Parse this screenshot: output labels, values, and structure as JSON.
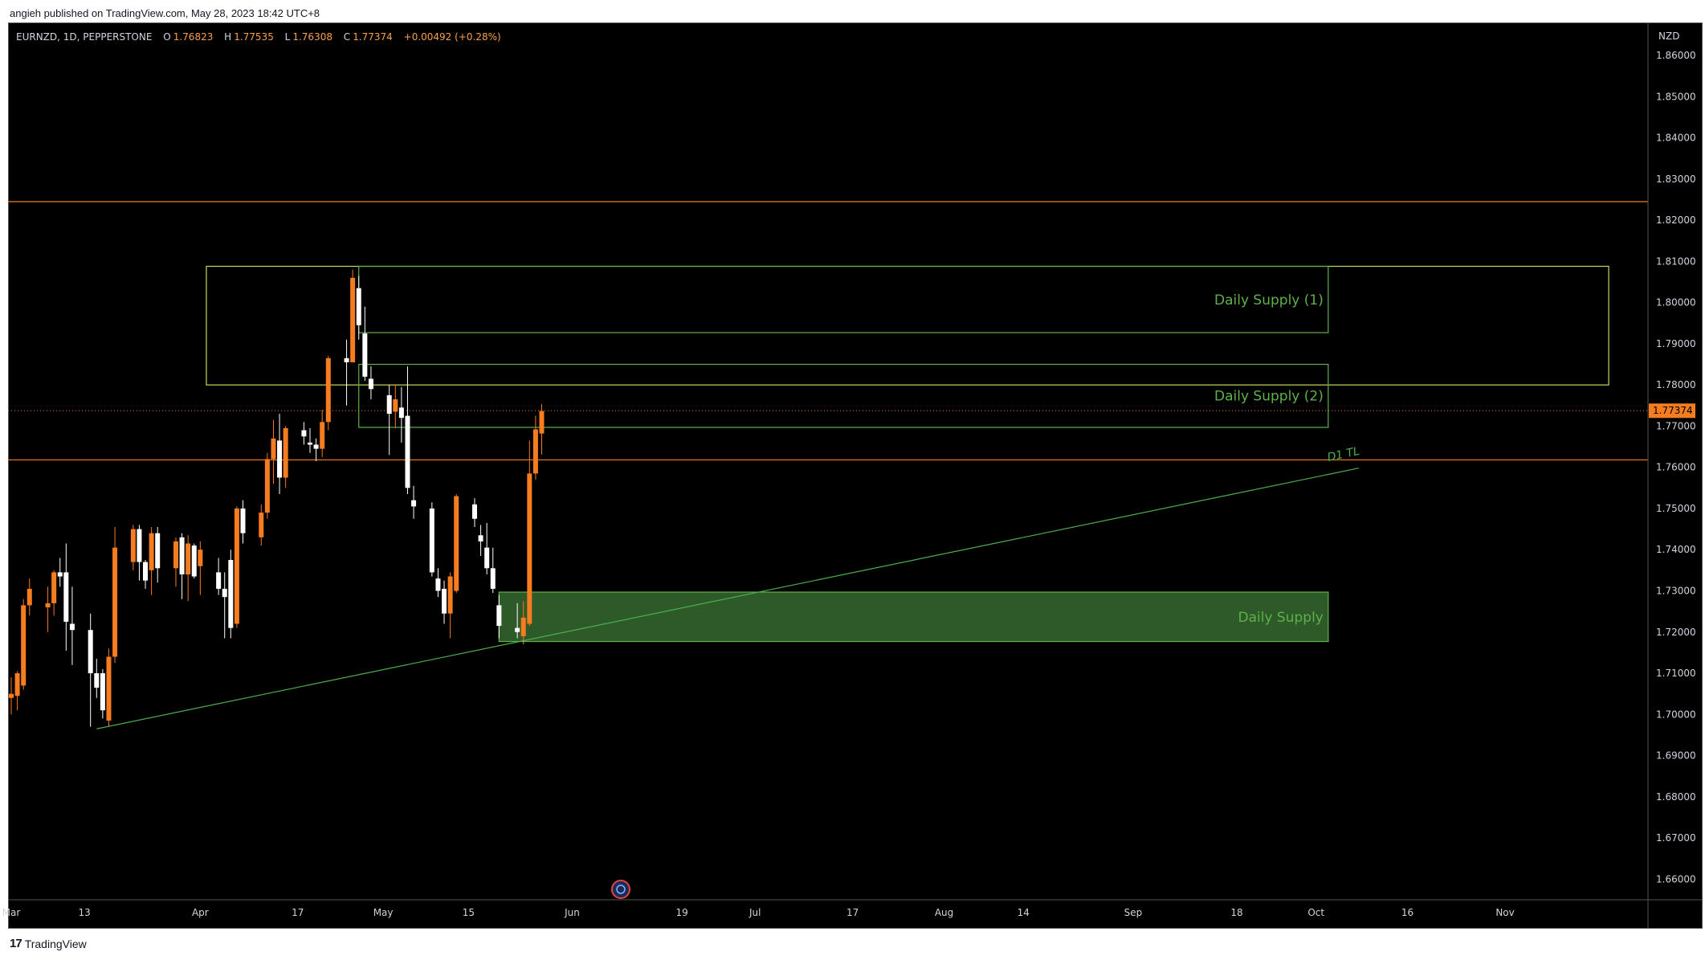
{
  "header": {
    "published": "angieh published on TradingView.com, May 28, 2023 18:42 UTC+8"
  },
  "legend": {
    "symbol": "EURNZD, 1D, PEPPERSTONE",
    "o_label": "O",
    "o_value": "1.76823",
    "h_label": "H",
    "h_value": "1.77535",
    "l_label": "L",
    "l_value": "1.76308",
    "c_label": "C",
    "c_value": "1.77374",
    "change": "+0.00492 (+0.28%)"
  },
  "footer": {
    "logo_text": "TradingView"
  },
  "colors": {
    "background": "#000000",
    "up": "#f57c1f",
    "down": "#ffffff",
    "zone_border": "#5fb04a",
    "zone_fill": "#2d5a28",
    "zone_label": "#5fb04a",
    "resistance_line": "#f57c1f",
    "trendline": "#4caf50",
    "last_price_bg": "#f57c1f",
    "axis_text": "#d1d4dc"
  },
  "chart_data": {
    "type": "candlestick",
    "symbol": "EURNZD",
    "timeframe": "1D",
    "currency": "NZD",
    "ylim": [
      1.655,
      1.868
    ],
    "y_ticks": [
      "1.86000",
      "1.85000",
      "1.84000",
      "1.83000",
      "1.82000",
      "1.81000",
      "1.80000",
      "1.79000",
      "1.78000",
      "1.77000",
      "1.76000",
      "1.75000",
      "1.74000",
      "1.73000",
      "1.72000",
      "1.71000",
      "1.70000",
      "1.69000",
      "1.68000",
      "1.67000",
      "1.66000"
    ],
    "x_ticks": [
      {
        "label": "Mar",
        "day": 0
      },
      {
        "label": "13",
        "day": 12
      },
      {
        "label": "Apr",
        "day": 31
      },
      {
        "label": "17",
        "day": 47
      },
      {
        "label": "May",
        "day": 61
      },
      {
        "label": "15",
        "day": 75
      },
      {
        "label": "Jun",
        "day": 92
      },
      {
        "label": "19",
        "day": 110
      },
      {
        "label": "Jul",
        "day": 122
      },
      {
        "label": "17",
        "day": 138
      },
      {
        "label": "Aug",
        "day": 153
      },
      {
        "label": "14",
        "day": 166
      },
      {
        "label": "Sep",
        "day": 184
      },
      {
        "label": "18",
        "day": 201
      },
      {
        "label": "Oct",
        "day": 214
      },
      {
        "label": "16",
        "day": 229
      },
      {
        "label": "Nov",
        "day": 245
      }
    ],
    "last_price": "1.77374",
    "last_price_value": 1.77374,
    "candles": [
      {
        "day": -2,
        "o": 1.7135,
        "h": 1.73,
        "l": 1.705,
        "c": 1.7075
      },
      {
        "day": -1,
        "o": 1.7075,
        "h": 1.7135,
        "l": 1.7015,
        "c": 1.7035
      },
      {
        "day": 0,
        "o": 1.704,
        "h": 1.709,
        "l": 1.7,
        "c": 1.705
      },
      {
        "day": 1,
        "o": 1.7045,
        "h": 1.7105,
        "l": 1.701,
        "c": 1.71
      },
      {
        "day": 2,
        "o": 1.707,
        "h": 1.728,
        "l": 1.706,
        "c": 1.7265
      },
      {
        "day": 3,
        "o": 1.7265,
        "h": 1.733,
        "l": 1.724,
        "c": 1.7305
      },
      {
        "day": 6,
        "o": 1.726,
        "h": 1.731,
        "l": 1.72,
        "c": 1.727
      },
      {
        "day": 7,
        "o": 1.727,
        "h": 1.735,
        "l": 1.724,
        "c": 1.7345
      },
      {
        "day": 8,
        "o": 1.7345,
        "h": 1.738,
        "l": 1.731,
        "c": 1.7335
      },
      {
        "day": 9,
        "o": 1.7345,
        "h": 1.7415,
        "l": 1.7155,
        "c": 1.7225
      },
      {
        "day": 10,
        "o": 1.722,
        "h": 1.731,
        "l": 1.712,
        "c": 1.7205
      },
      {
        "day": 13,
        "o": 1.7205,
        "h": 1.7245,
        "l": 1.697,
        "c": 1.71
      },
      {
        "day": 14,
        "o": 1.71,
        "h": 1.7135,
        "l": 1.704,
        "c": 1.7065
      },
      {
        "day": 15,
        "o": 1.71,
        "h": 1.711,
        "l": 1.699,
        "c": 1.701
      },
      {
        "day": 16,
        "o": 1.6985,
        "h": 1.716,
        "l": 1.697,
        "c": 1.714
      },
      {
        "day": 17,
        "o": 1.714,
        "h": 1.7455,
        "l": 1.7125,
        "c": 1.7405
      },
      {
        "day": 20,
        "o": 1.737,
        "h": 1.746,
        "l": 1.735,
        "c": 1.745
      },
      {
        "day": 21,
        "o": 1.745,
        "h": 1.746,
        "l": 1.7325,
        "c": 1.737
      },
      {
        "day": 22,
        "o": 1.737,
        "h": 1.7375,
        "l": 1.7305,
        "c": 1.7325
      },
      {
        "day": 23,
        "o": 1.735,
        "h": 1.7455,
        "l": 1.729,
        "c": 1.744
      },
      {
        "day": 24,
        "o": 1.744,
        "h": 1.7455,
        "l": 1.732,
        "c": 1.7355
      },
      {
        "day": 27,
        "o": 1.7355,
        "h": 1.743,
        "l": 1.731,
        "c": 1.742
      },
      {
        "day": 28,
        "o": 1.743,
        "h": 1.744,
        "l": 1.728,
        "c": 1.734
      },
      {
        "day": 29,
        "o": 1.734,
        "h": 1.7435,
        "l": 1.7275,
        "c": 1.7415
      },
      {
        "day": 30,
        "o": 1.741,
        "h": 1.7415,
        "l": 1.733,
        "c": 1.7335
      },
      {
        "day": 31,
        "o": 1.736,
        "h": 1.742,
        "l": 1.729,
        "c": 1.74
      },
      {
        "day": 34,
        "o": 1.7345,
        "h": 1.738,
        "l": 1.729,
        "c": 1.7305
      },
      {
        "day": 35,
        "o": 1.7305,
        "h": 1.7345,
        "l": 1.7185,
        "c": 1.7285
      },
      {
        "day": 36,
        "o": 1.7375,
        "h": 1.74,
        "l": 1.7185,
        "c": 1.721
      },
      {
        "day": 37,
        "o": 1.722,
        "h": 1.7505,
        "l": 1.721,
        "c": 1.75
      },
      {
        "day": 38,
        "o": 1.75,
        "h": 1.752,
        "l": 1.7415,
        "c": 1.744
      },
      {
        "day": 41,
        "o": 1.743,
        "h": 1.751,
        "l": 1.741,
        "c": 1.749
      },
      {
        "day": 42,
        "o": 1.749,
        "h": 1.7635,
        "l": 1.7475,
        "c": 1.762
      },
      {
        "day": 43,
        "o": 1.762,
        "h": 1.7715,
        "l": 1.756,
        "c": 1.767
      },
      {
        "day": 44,
        "o": 1.7665,
        "h": 1.773,
        "l": 1.7535,
        "c": 1.7575
      },
      {
        "day": 45,
        "o": 1.7575,
        "h": 1.77,
        "l": 1.755,
        "c": 1.7695
      },
      {
        "day": 48,
        "o": 1.769,
        "h": 1.771,
        "l": 1.7655,
        "c": 1.7675
      },
      {
        "day": 49,
        "o": 1.766,
        "h": 1.7695,
        "l": 1.7635,
        "c": 1.7655
      },
      {
        "day": 50,
        "o": 1.7655,
        "h": 1.767,
        "l": 1.7615,
        "c": 1.7645
      },
      {
        "day": 51,
        "o": 1.7645,
        "h": 1.774,
        "l": 1.7625,
        "c": 1.771
      },
      {
        "day": 52,
        "o": 1.771,
        "h": 1.787,
        "l": 1.769,
        "c": 1.7865
      },
      {
        "day": 55,
        "o": 1.7865,
        "h": 1.791,
        "l": 1.775,
        "c": 1.7855
      },
      {
        "day": 56,
        "o": 1.7855,
        "h": 1.808,
        "l": 1.7855,
        "c": 1.806
      },
      {
        "day": 57,
        "o": 1.8035,
        "h": 1.8065,
        "l": 1.791,
        "c": 1.7945
      },
      {
        "day": 58,
        "o": 1.7925,
        "h": 1.799,
        "l": 1.781,
        "c": 1.782
      },
      {
        "day": 59,
        "o": 1.7815,
        "h": 1.7845,
        "l": 1.7765,
        "c": 1.779
      },
      {
        "day": 62,
        "o": 1.7775,
        "h": 1.78,
        "l": 1.763,
        "c": 1.773
      },
      {
        "day": 63,
        "o": 1.7735,
        "h": 1.78,
        "l": 1.7695,
        "c": 1.7765
      },
      {
        "day": 64,
        "o": 1.7745,
        "h": 1.7795,
        "l": 1.766,
        "c": 1.772
      },
      {
        "day": 65,
        "o": 1.7725,
        "h": 1.7845,
        "l": 1.7535,
        "c": 1.755
      },
      {
        "day": 66,
        "o": 1.752,
        "h": 1.7555,
        "l": 1.7475,
        "c": 1.7505
      },
      {
        "day": 69,
        "o": 1.75,
        "h": 1.7515,
        "l": 1.7335,
        "c": 1.7345
      },
      {
        "day": 70,
        "o": 1.733,
        "h": 1.7355,
        "l": 1.7285,
        "c": 1.73
      },
      {
        "day": 71,
        "o": 1.7305,
        "h": 1.7325,
        "l": 1.722,
        "c": 1.7245
      },
      {
        "day": 72,
        "o": 1.7245,
        "h": 1.7345,
        "l": 1.7185,
        "c": 1.7335
      },
      {
        "day": 73,
        "o": 1.73,
        "h": 1.7535,
        "l": 1.7295,
        "c": 1.753
      },
      {
        "day": 76,
        "o": 1.751,
        "h": 1.7525,
        "l": 1.7455,
        "c": 1.7475
      },
      {
        "day": 77,
        "o": 1.7435,
        "h": 1.746,
        "l": 1.7385,
        "c": 1.742
      },
      {
        "day": 78,
        "o": 1.7405,
        "h": 1.7465,
        "l": 1.734,
        "c": 1.7355
      },
      {
        "day": 79,
        "o": 1.7355,
        "h": 1.7405,
        "l": 1.7295,
        "c": 1.7305
      },
      {
        "day": 80,
        "o": 1.7265,
        "h": 1.729,
        "l": 1.7185,
        "c": 1.7215
      },
      {
        "day": 83,
        "o": 1.721,
        "h": 1.727,
        "l": 1.7185,
        "c": 1.72
      },
      {
        "day": 84,
        "o": 1.719,
        "h": 1.7275,
        "l": 1.717,
        "c": 1.7235
      },
      {
        "day": 85,
        "o": 1.722,
        "h": 1.7665,
        "l": 1.7215,
        "c": 1.7585
      },
      {
        "day": 86,
        "o": 1.7585,
        "h": 1.7725,
        "l": 1.757,
        "c": 1.7692
      },
      {
        "day": 87,
        "o": 1.7682,
        "h": 1.7753,
        "l": 1.7631,
        "c": 1.7737
      }
    ],
    "resistance_lines": [
      1.8245,
      1.7618
    ],
    "zones": [
      {
        "name": "outer",
        "x0": 32,
        "x1": 262,
        "y0": 1.78,
        "y1": 1.8088,
        "label": ""
      },
      {
        "name": "daily-supply-1",
        "x0": 57,
        "x1": 216,
        "y0": 1.7927,
        "y1": 1.8088,
        "label": "Daily Supply (1)"
      },
      {
        "name": "daily-supply-2",
        "x0": 57,
        "x1": 216,
        "y0": 1.7697,
        "y1": 1.785,
        "label": "Daily Supply (2)"
      },
      {
        "name": "daily-supply-demand",
        "x0": 80,
        "x1": 216,
        "y0": 1.7177,
        "y1": 1.7297,
        "label": "Daily Supply",
        "filled": true
      }
    ],
    "trendline": {
      "x0": 14,
      "y0": 1.6965,
      "x1": 221,
      "y1": 1.7598,
      "label": "D1 TL",
      "label_x": 216,
      "label_y": 1.7615
    }
  }
}
